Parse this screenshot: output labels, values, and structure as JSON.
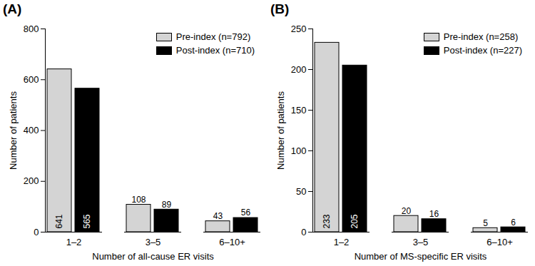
{
  "chart_data": [
    {
      "type": "bar",
      "title": "(A)",
      "x_label": "Number of all-cause ER visits",
      "y_label": "Number of patients",
      "categories": [
        "1–2",
        "3–5",
        "6–10+"
      ],
      "series": [
        {
          "name": "Pre-index (n=792)",
          "color": "#d4d4d4",
          "values": [
            641,
            108,
            43
          ]
        },
        {
          "name": "Post-index (n=710)",
          "color": "#000000",
          "values": [
            565,
            89,
            56
          ]
        }
      ],
      "ylim": [
        0,
        800
      ],
      "yticks": [
        0,
        200,
        400,
        600,
        800
      ],
      "legend": "top-right",
      "data_labels": true
    },
    {
      "type": "bar",
      "title": "(B)",
      "x_label": "Number of MS-specific ER visits",
      "y_label": "Number of patients",
      "categories": [
        "1–2",
        "3–5",
        "6–10+"
      ],
      "series": [
        {
          "name": "Pre-index (n=258)",
          "color": "#d4d4d4",
          "values": [
            233,
            20,
            5
          ]
        },
        {
          "name": "Post-index (n=227)",
          "color": "#000000",
          "values": [
            205,
            16,
            6
          ]
        }
      ],
      "ylim": [
        0,
        250
      ],
      "yticks": [
        0,
        50,
        100,
        150,
        200,
        250
      ],
      "legend": "top-right",
      "data_labels": true
    }
  ]
}
